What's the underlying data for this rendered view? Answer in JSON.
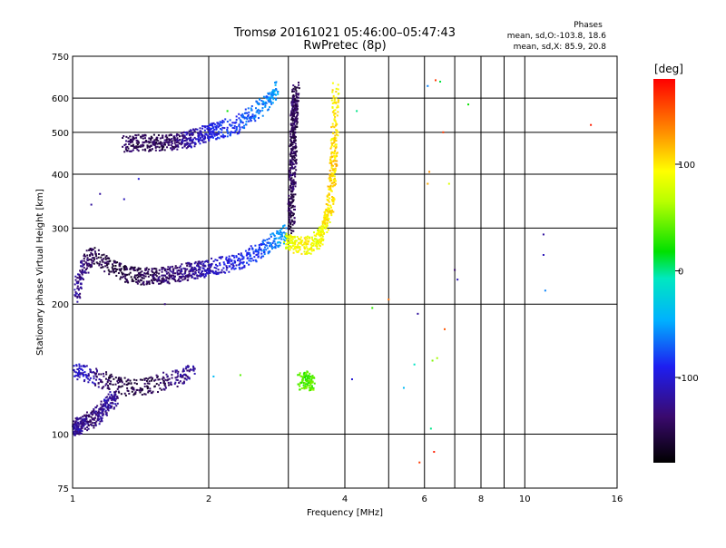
{
  "chart_data": {
    "type": "scatter",
    "title": "Tromsø 20161021 05:46:00–05:47:43",
    "subtitle": "RwPretec (8p)",
    "xlabel": "Frequency [MHz]",
    "ylabel": "Stationary phase Virtual Height [km]",
    "x_scale": "log",
    "y_scale": "log",
    "xlim": [
      1,
      16
    ],
    "ylim": [
      75,
      750
    ],
    "x_ticks": [
      "1",
      "2",
      "4",
      "6",
      "8",
      "10",
      "16"
    ],
    "x_tick_values": [
      1,
      2,
      4,
      6,
      8,
      10,
      16
    ],
    "x_grid_values": [
      1,
      2,
      3,
      4,
      5,
      6,
      7,
      8,
      9,
      10,
      16
    ],
    "y_ticks": [
      "75",
      "100",
      "200",
      "300",
      "400",
      "500",
      "600",
      "750"
    ],
    "y_tick_values": [
      75,
      100,
      200,
      300,
      400,
      500,
      600,
      750
    ],
    "grid": true,
    "legend": {
      "title": "Phases",
      "line1": "mean, sd,O:-103.8, 18.6",
      "line2": "mean, sd,X:  85.9, 20.8"
    },
    "colorbar": {
      "title": "[deg]",
      "range": [
        -180,
        180
      ],
      "ticks": [
        "100",
        "0",
        "-100"
      ],
      "tick_values": [
        100,
        0,
        -100
      ]
    },
    "traces": [
      {
        "mode": "O",
        "freq": [
          1.0,
          1.02,
          1.05,
          1.1,
          1.15,
          1.2,
          1.25
        ],
        "height": [
          103,
          104,
          106,
          108,
          112,
          118,
          122
        ],
        "phase": [
          -110,
          -130,
          -120,
          -140,
          -125,
          -115,
          -130
        ]
      },
      {
        "mode": "O",
        "freq": [
          1.0,
          1.08,
          1.2,
          1.35,
          1.5,
          1.7,
          1.85
        ],
        "height": [
          140,
          138,
          132,
          128,
          130,
          135,
          140
        ],
        "phase": [
          -100,
          -110,
          -150,
          -155,
          -150,
          -130,
          -120
        ]
      },
      {
        "mode": "O",
        "freq": [
          1.02,
          1.05,
          1.1,
          1.2,
          1.3,
          1.4,
          1.5,
          1.6,
          1.7,
          1.8,
          1.9,
          2.0,
          2.2,
          2.4,
          2.6,
          2.8,
          2.95
        ],
        "height": [
          210,
          240,
          260,
          245,
          235,
          232,
          232,
          233,
          235,
          238,
          240,
          243,
          248,
          255,
          265,
          280,
          295
        ],
        "phase": [
          -120,
          -130,
          -150,
          -155,
          -155,
          -150,
          -145,
          -140,
          -135,
          -130,
          -120,
          -110,
          -100,
          -90,
          -80,
          -60,
          -50
        ]
      },
      {
        "mode": "O",
        "freq": [
          1.3,
          1.4,
          1.5,
          1.6,
          1.7,
          1.8,
          1.9,
          2.0,
          2.1,
          2.3,
          2.5,
          2.7,
          2.85
        ],
        "height": [
          470,
          472,
          473,
          474,
          476,
          480,
          490,
          498,
          505,
          520,
          550,
          590,
          640
        ],
        "phase": [
          -140,
          -150,
          -150,
          -145,
          -140,
          -120,
          -110,
          -100,
          -90,
          -80,
          -70,
          -60,
          -50
        ]
      },
      {
        "mode": "O",
        "freq": [
          3.05,
          3.05,
          3.06,
          3.07,
          3.08,
          3.08,
          3.09,
          3.1,
          3.12
        ],
        "height": [
          300,
          340,
          380,
          420,
          460,
          500,
          540,
          580,
          630
        ],
        "phase": [
          -150,
          -150,
          -145,
          -140,
          -150,
          -155,
          -145,
          -140,
          -150
        ]
      },
      {
        "mode": "X",
        "freq": [
          2.95,
          3.1,
          3.3,
          3.5,
          3.6,
          3.7,
          3.75,
          3.78,
          3.8,
          3.82
        ],
        "height": [
          280,
          275,
          272,
          282,
          300,
          330,
          380,
          430,
          500,
          640
        ],
        "phase": [
          80,
          90,
          95,
          85,
          95,
          100,
          105,
          110,
          100,
          95
        ]
      },
      {
        "mode": "X",
        "freq": [
          3.2,
          3.3,
          3.4
        ],
        "height": [
          132,
          134,
          131
        ],
        "phase": [
          40,
          35,
          45
        ]
      }
    ],
    "scattered_points": {
      "freq": [
        1.1,
        1.15,
        1.3,
        1.4,
        1.6,
        2.05,
        2.35,
        2.2,
        4.25,
        4.15,
        4.6,
        5.0,
        5.4,
        5.7,
        5.8,
        6.1,
        6.15,
        6.35,
        6.5,
        6.6,
        6.65,
        7.0,
        7.1,
        7.5,
        6.2,
        6.3,
        6.4,
        6.8,
        11.0,
        11.0,
        11.1,
        14.0,
        6.25,
        6.1,
        5.85
      ],
      "height": [
        340,
        360,
        350,
        390,
        200,
        136,
        137,
        560,
        560,
        134,
        196,
        205,
        128,
        145,
        190,
        380,
        405,
        660,
        655,
        500,
        175,
        240,
        228,
        580,
        103,
        91,
        150,
        380,
        290,
        260,
        215,
        520,
        148,
        640,
        86
      ],
      "phase": [
        -120,
        -120,
        -110,
        -100,
        -130,
        -40,
        40,
        20,
        0,
        -100,
        30,
        140,
        -40,
        -10,
        -120,
        120,
        130,
        160,
        10,
        160,
        150,
        -140,
        -110,
        20,
        0,
        170,
        60,
        80,
        -120,
        -110,
        -60,
        170,
        50,
        -60,
        160
      ]
    }
  }
}
